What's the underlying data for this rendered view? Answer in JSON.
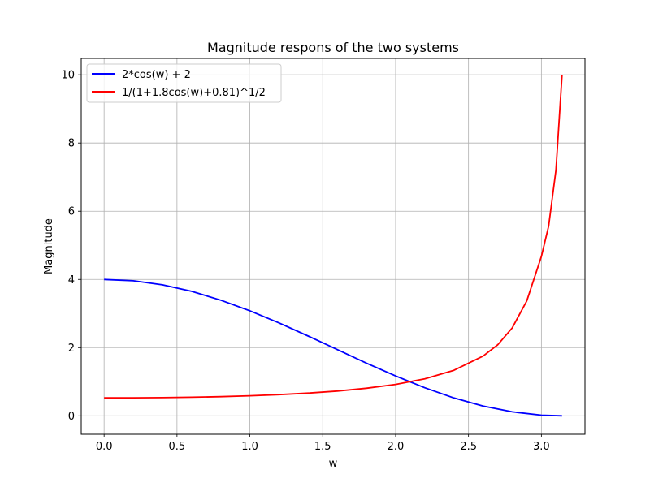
{
  "chart_data": {
    "type": "line",
    "title": "Magnitude respons of the two systems",
    "xlabel": "w",
    "ylabel": "Magnitude",
    "xlim": [
      -0.157,
      3.299
    ],
    "ylim": [
      -0.54,
      10.48
    ],
    "xticks": [
      0.0,
      0.5,
      1.0,
      1.5,
      2.0,
      2.5,
      3.0
    ],
    "xtick_labels": [
      "0.0",
      "0.5",
      "1.0",
      "1.5",
      "2.0",
      "2.5",
      "3.0"
    ],
    "yticks": [
      0,
      2,
      4,
      6,
      8,
      10
    ],
    "ytick_labels": [
      "0",
      "2",
      "4",
      "6",
      "8",
      "10"
    ],
    "grid": true,
    "legend_position": "upper-left",
    "series": [
      {
        "name": "2*cos(w) + 2",
        "color": "#0000ff",
        "x": [
          0.0,
          0.2,
          0.4,
          0.6,
          0.8,
          1.0,
          1.2,
          1.4,
          1.6,
          1.8,
          2.0,
          2.2,
          2.4,
          2.6,
          2.8,
          3.0,
          3.1416
        ],
        "y": [
          4.0,
          3.96,
          3.842,
          3.651,
          3.393,
          3.081,
          2.725,
          2.34,
          1.942,
          1.546,
          1.168,
          0.823,
          0.525,
          0.286,
          0.116,
          0.02,
          0.0
        ]
      },
      {
        "name": "1/(1+1.8cos(w)+0.81)^1/2",
        "color": "#ff0000",
        "x": [
          0.0,
          0.2,
          0.4,
          0.6,
          0.8,
          1.0,
          1.2,
          1.4,
          1.6,
          1.8,
          2.0,
          2.2,
          2.4,
          2.6,
          2.7,
          2.8,
          2.9,
          3.0,
          3.05,
          3.1,
          3.1416
        ],
        "y": [
          0.526,
          0.528,
          0.534,
          0.546,
          0.563,
          0.588,
          0.622,
          0.667,
          0.727,
          0.809,
          0.922,
          1.085,
          1.335,
          1.751,
          2.081,
          2.58,
          3.37,
          4.678,
          5.566,
          7.21,
          10.0
        ]
      }
    ]
  }
}
